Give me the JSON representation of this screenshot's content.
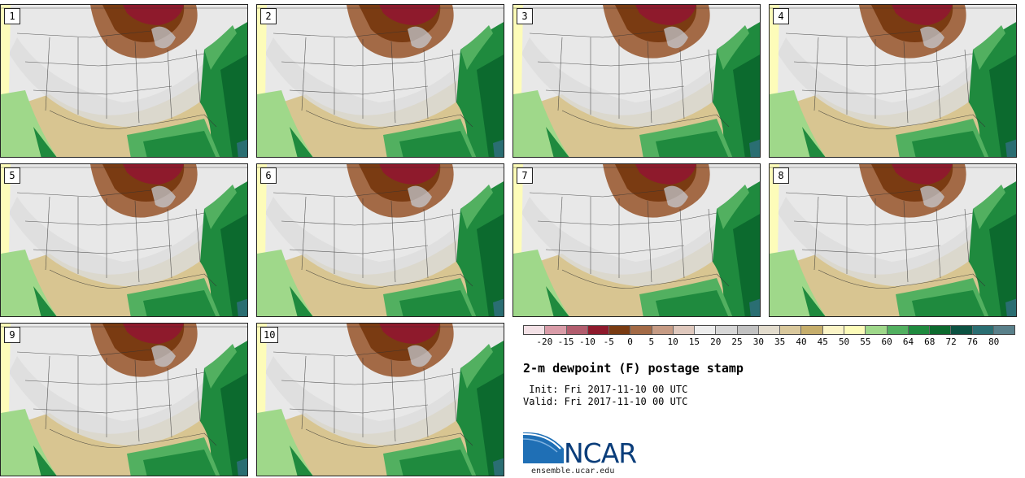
{
  "panels": [
    {
      "label": "1"
    },
    {
      "label": "2"
    },
    {
      "label": "3"
    },
    {
      "label": "4"
    },
    {
      "label": "5"
    },
    {
      "label": "6"
    },
    {
      "label": "7"
    },
    {
      "label": "8"
    },
    {
      "label": "9"
    },
    {
      "label": "10"
    }
  ],
  "colorbar": {
    "colors": [
      "#f3e1e6",
      "#d99ca8",
      "#b25d6e",
      "#8e1a2c",
      "#7a3b12",
      "#a36a46",
      "#c69b84",
      "#dfc8bd",
      "#ededed",
      "#d7d7d7",
      "#c2c2c2",
      "#e3dccd",
      "#d9c89c",
      "#c6ae6c",
      "#fbf4c6",
      "#fdfcb9",
      "#9fd88a",
      "#52b060",
      "#1f8a3e",
      "#0c6a2e",
      "#0c5242",
      "#2a6e72",
      "#59808a"
    ],
    "labels": [
      "-20",
      "-15",
      "-10",
      "-5",
      "0",
      "5",
      "10",
      "15",
      "20",
      "25",
      "30",
      "35",
      "40",
      "45",
      "50",
      "55",
      "60",
      "64",
      "68",
      "72",
      "76",
      "80"
    ]
  },
  "title": "2-m dewpoint (F) postage stamp",
  "init_text": " Init: Fri 2017-11-10 00 UTC",
  "valid_text": "Valid: Fri 2017-11-10 00 UTC",
  "logo": {
    "word": "NCAR",
    "url": "ensemble.ucar.edu"
  }
}
